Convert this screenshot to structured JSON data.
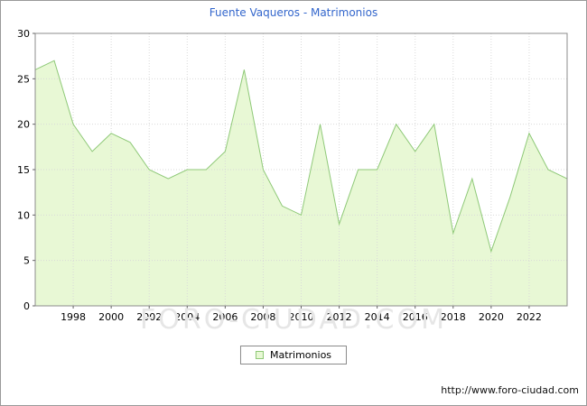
{
  "header": {
    "title": "Fuente Vaqueros - Matrimonios",
    "title_color": "#3366cc"
  },
  "chart_data": {
    "type": "area",
    "title": "Fuente Vaqueros - Matrimonios",
    "xlabel": "",
    "ylabel": "",
    "x": [
      1996,
      1997,
      1998,
      1999,
      2000,
      2001,
      2002,
      2003,
      2004,
      2005,
      2006,
      2007,
      2008,
      2009,
      2010,
      2011,
      2012,
      2013,
      2014,
      2015,
      2016,
      2017,
      2018,
      2019,
      2020,
      2021,
      2022,
      2023,
      2024
    ],
    "series": [
      {
        "name": "Matrimonios",
        "values": [
          26,
          27,
          20,
          17,
          19,
          18,
          15,
          14,
          15,
          15,
          17,
          26,
          15,
          11,
          10,
          20,
          9,
          15,
          15,
          20,
          17,
          20,
          8,
          14,
          6,
          12,
          19,
          15,
          14
        ]
      }
    ],
    "ylim": [
      0,
      30
    ],
    "yticks": [
      0,
      5,
      10,
      15,
      20,
      25,
      30
    ],
    "xticks": [
      1998,
      2000,
      2002,
      2004,
      2006,
      2008,
      2010,
      2012,
      2014,
      2016,
      2018,
      2020,
      2022
    ],
    "grid": true,
    "legend_position": "bottom-center",
    "colors": {
      "area_fill": "#e8f8d5",
      "line": "#8fc978",
      "grid": "#d9d9d9",
      "axis_border": "#8c8c8c",
      "tick": "#666666",
      "tick_label": "#000000"
    }
  },
  "legend": {
    "label": "Matrimonios"
  },
  "watermark": {
    "text": "FORO-CIUDAD.COM"
  },
  "footer": {
    "url": "http://www.foro-ciudad.com"
  }
}
